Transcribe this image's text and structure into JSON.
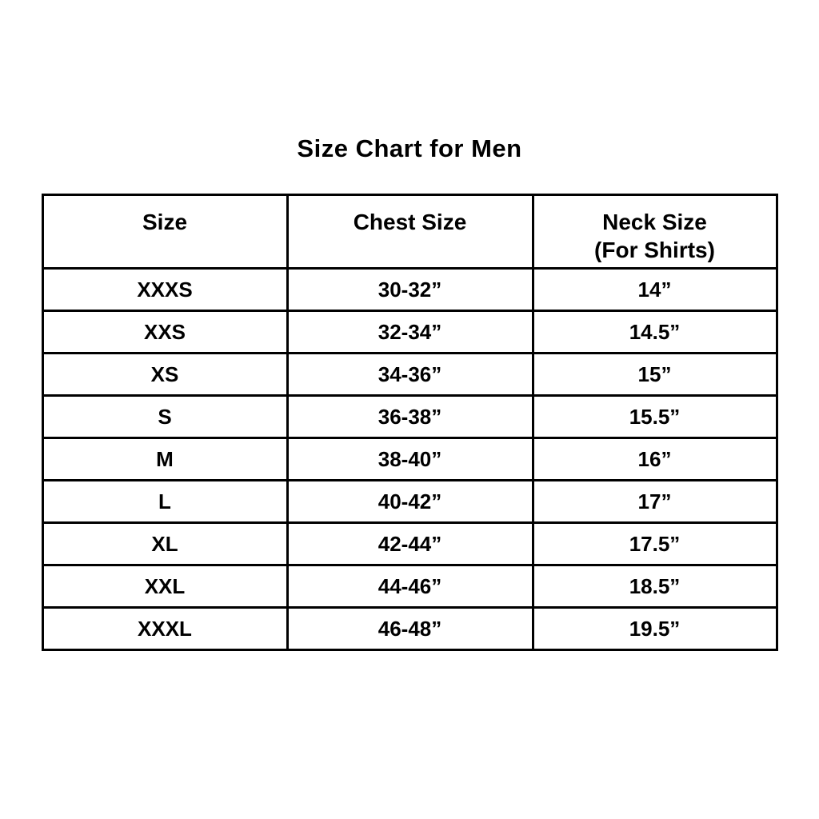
{
  "page": {
    "title": "Size Chart for Men"
  },
  "colors": {
    "background": "#ffffff",
    "text": "#000000",
    "table_border": "#000000"
  },
  "chart_data": {
    "type": "table",
    "title": "Size Chart for Men",
    "header": [
      {
        "label": "Size",
        "sublabel": ""
      },
      {
        "label": "Chest Size",
        "sublabel": ""
      },
      {
        "label": "Neck Size",
        "sublabel": "(For Shirts)"
      }
    ],
    "columns": [
      "Size",
      "Chest Size",
      "Neck Size (For Shirts)"
    ],
    "rows": [
      [
        "XXXS",
        "30-32”",
        "14”"
      ],
      [
        "XXS",
        "32-34”",
        "14.5”"
      ],
      [
        "XS",
        "34-36”",
        "15”"
      ],
      [
        "S",
        "36-38”",
        "15.5”"
      ],
      [
        "M",
        "38-40”",
        "16”"
      ],
      [
        "L",
        "40-42”",
        "17”"
      ],
      [
        "XL",
        "42-44”",
        "17.5”"
      ],
      [
        "XXL",
        "44-46”",
        "18.5”"
      ],
      [
        "XXXL",
        "46-48”",
        "19.5”"
      ]
    ]
  }
}
